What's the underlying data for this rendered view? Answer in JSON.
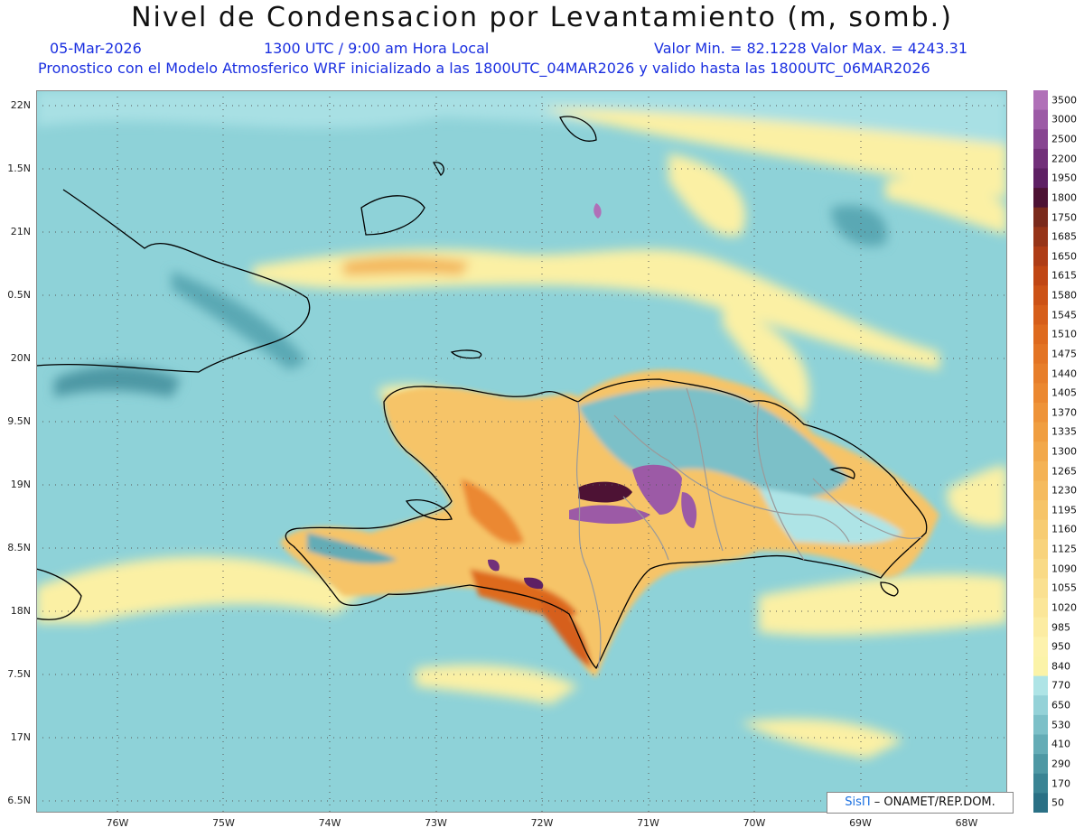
{
  "title": "Nivel de Condensacion por Levantamiento (m, somb.)",
  "date": "05-Mar-2026",
  "time": "1300 UTC / 9:00 am Hora Local",
  "minmax": "Valor Min. = 82.1228   Valor Max. = 4243.31",
  "model_info": "Pronostico con el Modelo Atmosferico WRF inicializado a las 1800UTC_04MAR2026 y valido hasta las  1800UTC_06MAR2026",
  "credit": {
    "brand": "SisΠ",
    "text": "– ONAMET/REP.DOM."
  },
  "lat_ticks": [
    "22N",
    "1.5N",
    "21N",
    "0.5N",
    "20N",
    "9.5N",
    "19N",
    "8.5N",
    "18N",
    "7.5N",
    "17N",
    "6.5N"
  ],
  "lon_ticks": [
    "76W",
    "75W",
    "74W",
    "73W",
    "72W",
    "71W",
    "70W",
    "69W",
    "68W"
  ],
  "colorbar": {
    "labels": [
      "3500",
      "3000",
      "2500",
      "2200",
      "1950",
      "1800",
      "1750",
      "1685",
      "1650",
      "1615",
      "1580",
      "1545",
      "1510",
      "1475",
      "1440",
      "1405",
      "1370",
      "1335",
      "1300",
      "1265",
      "1230",
      "1195",
      "1160",
      "1125",
      "1090",
      "1055",
      "1020",
      "985",
      "950",
      "840",
      "770",
      "650",
      "530",
      "410",
      "290",
      "170",
      "50"
    ],
    "colors": [
      "#b070b8",
      "#9c5aa6",
      "#874491",
      "#72307a",
      "#5e2064",
      "#4d1234",
      "#7a2a1c",
      "#963418",
      "#ae3c16",
      "#c04614",
      "#cc5216",
      "#d65e1a",
      "#de6a1e",
      "#e37424",
      "#e77e2a",
      "#eb8830",
      "#ee9338",
      "#f09e40",
      "#f2a84a",
      "#f4b254",
      "#f5bb5e",
      "#f6c468",
      "#f7cc72",
      "#f8d37c",
      "#f9da86",
      "#fae090",
      "#fbe698",
      "#fceca2",
      "#fdf2ac",
      "#fbf3a8",
      "#aee4e6",
      "#94d2d8",
      "#7cc0c8",
      "#64acb6",
      "#4e98a4",
      "#3a8494",
      "#2a7085"
    ]
  },
  "colors": {
    "ocean": "#8ed2d8",
    "sub_text": "#1a2fe0",
    "coast": "#000000",
    "border_gray": "#9a9a9a"
  }
}
